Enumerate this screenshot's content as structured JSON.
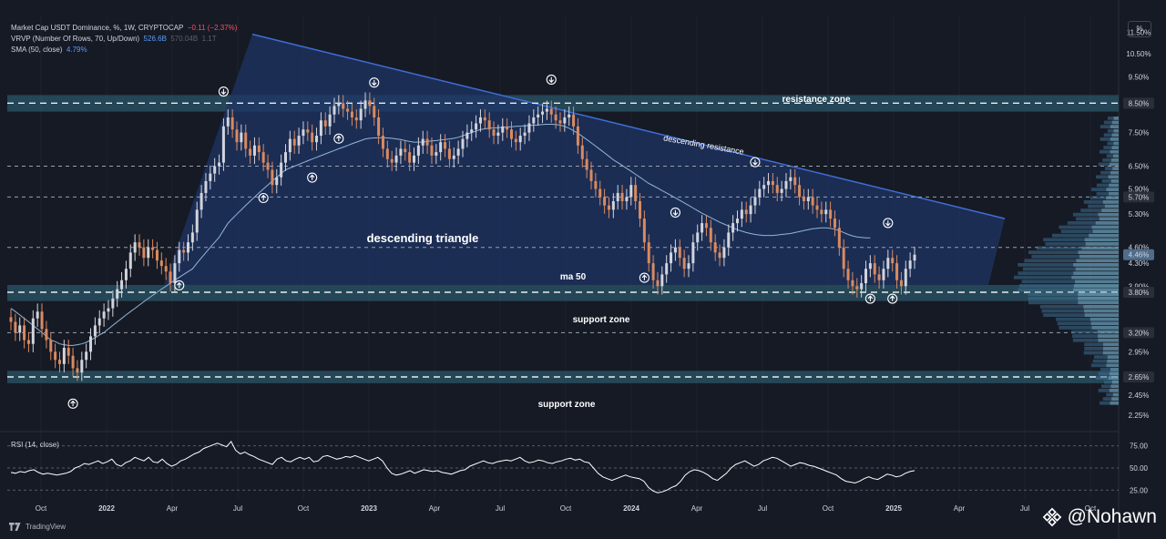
{
  "legend": {
    "line1_title": "Market Cap USDT Dominance, %, 1W, CRYPTOCAP",
    "line1_change": "−0.11 (−2.37%)",
    "line2_title": "VRVP (Number Of Rows, 70, Up/Down)",
    "line2_val1": "526.6B",
    "line2_val2": "570.04B",
    "line2_val3": "1.1T",
    "line3_title": "SMA (50, close)",
    "line3_val": "4.79%"
  },
  "rsi_title": "RSI (14, close)",
  "scale_button": "%",
  "brand": "TradingView",
  "watermark": "@Nohawn",
  "colors": {
    "background": "#161a25",
    "triangle_fill": "#1e3566",
    "zone_fill": "#2b5a6b",
    "bull": "#d1d4dc",
    "bear": "#d98a5f",
    "sma": "#8fb6d6",
    "resistance": "#3f6ed8"
  },
  "chart_data": {
    "type": "candlestick",
    "scale": "log",
    "ylim": [
      2.2,
      12.3
    ],
    "price_ticks": [
      "11.50%",
      "10.50%",
      "9.50%",
      "8.50%",
      "7.50%",
      "6.50%",
      "5.90%",
      "5.70%",
      "5.30%",
      "4.60%",
      "4.46%",
      "4.30%",
      "3.90%",
      "3.80%",
      "3.20%",
      "2.95%",
      "2.65%",
      "2.45%",
      "2.25%"
    ],
    "highlighted_ticks": [
      "8.50%",
      "5.70%",
      "4.46%",
      "3.80%",
      "3.20%",
      "2.65%"
    ],
    "x_ticks": [
      "Oct",
      "2022",
      "Apr",
      "Jul",
      "Oct",
      "2023",
      "Apr",
      "Jul",
      "Oct",
      "2024",
      "Apr",
      "Jul",
      "Oct",
      "2025",
      "Apr",
      "Jul",
      "Oct"
    ],
    "dashed_levels": [
      8.5,
      6.5,
      5.7,
      4.6,
      3.8,
      3.2,
      2.65
    ],
    "zones": [
      {
        "label": "resistance zone",
        "low": 8.2,
        "high": 8.8
      },
      {
        "label": "support zone",
        "low": 3.66,
        "high": 3.92
      },
      {
        "label": "support zone",
        "low": 2.58,
        "high": 2.72
      }
    ],
    "annotations": [
      "descending triangle",
      "ma 50",
      "descending resistance"
    ],
    "closes": [
      3.35,
      3.2,
      3.3,
      3.1,
      3.05,
      3.4,
      3.5,
      3.25,
      3.1,
      2.95,
      2.85,
      2.8,
      3.0,
      2.9,
      2.75,
      2.7,
      2.85,
      2.95,
      3.15,
      3.3,
      3.4,
      3.5,
      3.55,
      3.7,
      3.85,
      4.0,
      4.2,
      4.5,
      4.7,
      4.6,
      4.4,
      4.6,
      4.55,
      4.35,
      4.25,
      4.15,
      3.95,
      4.3,
      4.55,
      4.5,
      4.7,
      4.9,
      5.4,
      5.8,
      6.1,
      6.3,
      6.5,
      6.6,
      7.7,
      8.0,
      7.6,
      7.2,
      7.5,
      7.0,
      6.8,
      7.1,
      6.9,
      6.6,
      6.4,
      6.0,
      6.2,
      6.6,
      6.9,
      7.3,
      7.1,
      7.4,
      7.6,
      7.5,
      7.2,
      7.4,
      7.9,
      7.7,
      8.1,
      8.4,
      8.5,
      8.3,
      8.2,
      8.0,
      7.9,
      8.3,
      8.6,
      8.4,
      8.0,
      7.4,
      7.0,
      6.7,
      6.6,
      6.8,
      7.0,
      6.9,
      6.6,
      6.8,
      7.1,
      7.3,
      7.1,
      6.8,
      6.9,
      7.2,
      7.0,
      6.7,
      6.8,
      7.0,
      7.3,
      7.5,
      7.6,
      7.8,
      8.0,
      7.9,
      7.6,
      7.4,
      7.5,
      7.7,
      7.6,
      7.3,
      7.2,
      7.4,
      7.5,
      7.8,
      8.0,
      8.1,
      8.2,
      8.3,
      8.1,
      7.9,
      7.8,
      8.0,
      8.1,
      7.7,
      7.1,
      6.7,
      6.4,
      6.1,
      5.9,
      5.7,
      5.5,
      5.4,
      5.6,
      5.8,
      5.6,
      5.7,
      6.0,
      5.6,
      5.2,
      4.7,
      4.3,
      4.0,
      3.9,
      4.1,
      4.3,
      4.5,
      4.6,
      4.4,
      4.2,
      4.3,
      4.7,
      4.9,
      5.1,
      5.0,
      4.7,
      4.5,
      4.4,
      4.6,
      4.9,
      5.1,
      5.2,
      5.4,
      5.3,
      5.5,
      5.7,
      5.9,
      6.0,
      6.1,
      6.0,
      5.8,
      5.9,
      6.1,
      6.2,
      6.0,
      5.7,
      5.6,
      5.7,
      5.5,
      5.4,
      5.3,
      5.4,
      5.2,
      5.0,
      4.6,
      4.2,
      4.0,
      3.9,
      3.85,
      3.95,
      4.2,
      4.3,
      4.1,
      4.0,
      4.2,
      4.4,
      4.3,
      4.0,
      3.9,
      4.2,
      4.35,
      4.46
    ],
    "sma50": [
      3.55,
      3.5,
      3.45,
      3.4,
      3.35,
      3.3,
      3.25,
      3.2,
      3.15,
      3.1,
      3.08,
      3.05,
      3.04,
      3.03,
      3.03,
      3.04,
      3.05,
      3.07,
      3.1,
      3.13,
      3.17,
      3.2,
      3.25,
      3.3,
      3.35,
      3.4,
      3.45,
      3.5,
      3.55,
      3.6,
      3.65,
      3.7,
      3.75,
      3.8,
      3.85,
      3.9,
      3.95,
      4.0,
      4.05,
      4.1,
      4.15,
      4.2,
      4.3,
      4.4,
      4.5,
      4.6,
      4.7,
      4.8,
      4.95,
      5.1,
      5.2,
      5.3,
      5.4,
      5.5,
      5.6,
      5.7,
      5.8,
      5.9,
      6.0,
      6.1,
      6.2,
      6.3,
      6.4,
      6.45,
      6.5,
      6.55,
      6.6,
      6.65,
      6.7,
      6.75,
      6.8,
      6.85,
      6.9,
      6.95,
      7.0,
      7.05,
      7.1,
      7.15,
      7.2,
      7.25,
      7.3,
      7.32,
      7.33,
      7.34,
      7.34,
      7.33,
      7.32,
      7.3,
      7.28,
      7.25,
      7.22,
      7.2,
      7.2,
      7.2,
      7.22,
      7.24,
      7.25,
      7.27,
      7.28,
      7.3,
      7.32,
      7.35,
      7.4,
      7.45,
      7.5,
      7.55,
      7.6,
      7.62,
      7.64,
      7.65,
      7.66,
      7.67,
      7.68,
      7.69,
      7.7,
      7.71,
      7.72,
      7.73,
      7.74,
      7.75,
      7.76,
      7.77,
      7.77,
      7.76,
      7.74,
      7.7,
      7.64,
      7.56,
      7.48,
      7.38,
      7.28,
      7.18,
      7.08,
      6.98,
      6.88,
      6.78,
      6.68,
      6.6,
      6.52,
      6.44,
      6.36,
      6.28,
      6.2,
      6.12,
      6.04,
      5.98,
      5.92,
      5.86,
      5.8,
      5.74,
      5.68,
      5.62,
      5.56,
      5.5,
      5.44,
      5.38,
      5.32,
      5.27,
      5.22,
      5.17,
      5.12,
      5.08,
      5.04,
      5.0,
      4.96,
      4.93,
      4.9,
      4.88,
      4.86,
      4.85,
      4.84,
      4.84,
      4.84,
      4.85,
      4.86,
      4.87,
      4.88,
      4.9,
      4.92,
      4.94,
      4.96,
      4.98,
      4.99,
      5.0,
      5.0,
      4.99,
      4.97,
      4.94,
      4.9,
      4.86,
      4.83,
      4.81,
      4.8,
      4.79,
      4.79
    ],
    "rsi": {
      "levels": [
        "75.00",
        "50.00",
        "25.00"
      ],
      "values": [
        45,
        44,
        46,
        45,
        47,
        48,
        45,
        43,
        44,
        43,
        42,
        43,
        44,
        46,
        50,
        52,
        55,
        54,
        56,
        58,
        55,
        57,
        60,
        54,
        52,
        56,
        58,
        62,
        60,
        58,
        62,
        57,
        56,
        60,
        55,
        52,
        54,
        58,
        60,
        63,
        66,
        68,
        72,
        74,
        76,
        78,
        76,
        74,
        80,
        70,
        66,
        68,
        65,
        63,
        60,
        58,
        56,
        54,
        60,
        62,
        58,
        57,
        60,
        62,
        60,
        62,
        57,
        58,
        63,
        64,
        62,
        60,
        61,
        63,
        62,
        64,
        62,
        60,
        58,
        60,
        62,
        58,
        50,
        44,
        42,
        43,
        45,
        47,
        44,
        46,
        48,
        47,
        46,
        47,
        45,
        44,
        43,
        45,
        47,
        48,
        52,
        54,
        56,
        58,
        56,
        55,
        57,
        58,
        59,
        58,
        60,
        62,
        58,
        56,
        57,
        59,
        58,
        56,
        55,
        57,
        58,
        60,
        61,
        59,
        60,
        57,
        56,
        50,
        44,
        40,
        38,
        36,
        38,
        40,
        42,
        40,
        39,
        38,
        35,
        28,
        24,
        22,
        23,
        25,
        28,
        30,
        35,
        42,
        46,
        48,
        47,
        45,
        42,
        38,
        36,
        40,
        44,
        50,
        54,
        56,
        58,
        55,
        52,
        54,
        58,
        60,
        62,
        61,
        58,
        55,
        52,
        54,
        56,
        55,
        53,
        52,
        50,
        48,
        46,
        44,
        42,
        38,
        35,
        34,
        33,
        35,
        38,
        40,
        38,
        37,
        40,
        43,
        42,
        40,
        41,
        44,
        46,
        47
      ]
    }
  }
}
